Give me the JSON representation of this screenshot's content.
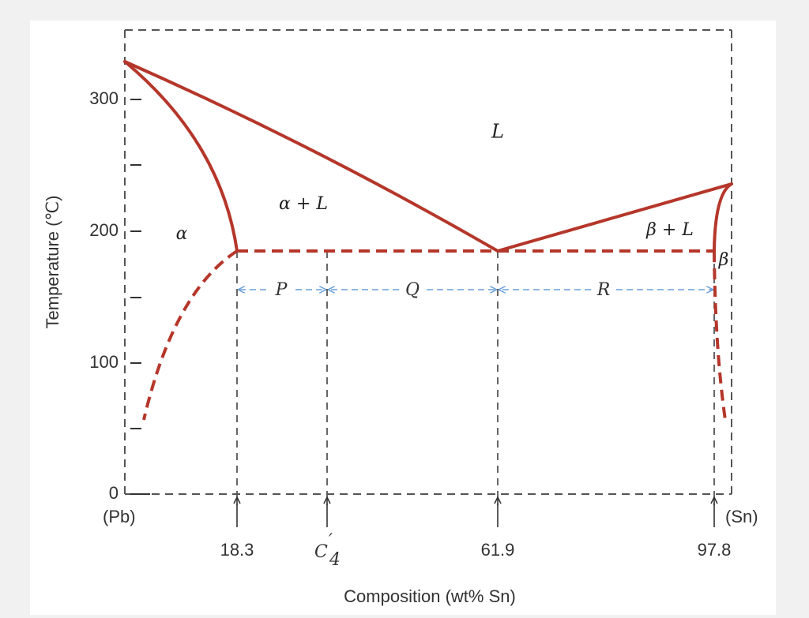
{
  "diagram": {
    "y_axis": {
      "title": "Temperature (℃)",
      "ticks": [
        {
          "value": 0,
          "label": "0"
        },
        {
          "value": 100,
          "label": "100"
        },
        {
          "value": 200,
          "label": "200"
        },
        {
          "value": 300,
          "label": "300"
        }
      ]
    },
    "x_axis": {
      "title": "Composition (wt% Sn)",
      "end_labels": {
        "left": "(Pb)",
        "right": "(Sn)"
      },
      "marks": [
        {
          "label": "18.3"
        },
        {
          "label": "C"
        },
        {
          "label": "61.9"
        },
        {
          "label": "97.8"
        }
      ],
      "c4_prime": "′",
      "c4_sub": "4"
    },
    "regions": {
      "liquid": "L",
      "alpha_liquid": "α + L",
      "alpha": "α",
      "beta_liquid": "β + L",
      "beta": "β"
    },
    "tie_line": {
      "segments": [
        {
          "label": "P"
        },
        {
          "label": "Q"
        },
        {
          "label": "R"
        }
      ]
    },
    "colors": {
      "phase_curve": "#b5362a",
      "tie_line_arrows": "#6a9fd8",
      "guides": "#555555"
    }
  }
}
